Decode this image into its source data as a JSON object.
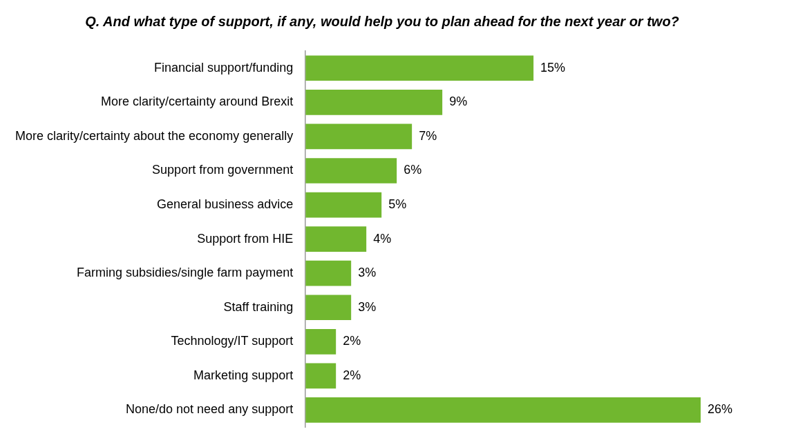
{
  "chart_data": {
    "type": "bar",
    "orientation": "horizontal",
    "title": "Q. And what type of support, if any, would help you to plan ahead for the next year or two?",
    "categories": [
      "Financial support/funding",
      "More clarity/certainty around Brexit",
      "More clarity/certainty about the economy generally",
      "Support from government",
      "General business advice",
      "Support from HIE",
      "Farming subsidies/single farm payment",
      "Staff training",
      "Technology/IT support",
      "Marketing support",
      "None/do not need any support"
    ],
    "values": [
      15,
      9,
      7,
      6,
      5,
      4,
      3,
      3,
      2,
      2,
      26
    ],
    "value_labels": [
      "15%",
      "9%",
      "7%",
      "6%",
      "5%",
      "4%",
      "3%",
      "3%",
      "2%",
      "2%",
      "26%"
    ],
    "color": "#71b72f",
    "grid": false,
    "legend": false,
    "tick_labels": "y"
  }
}
